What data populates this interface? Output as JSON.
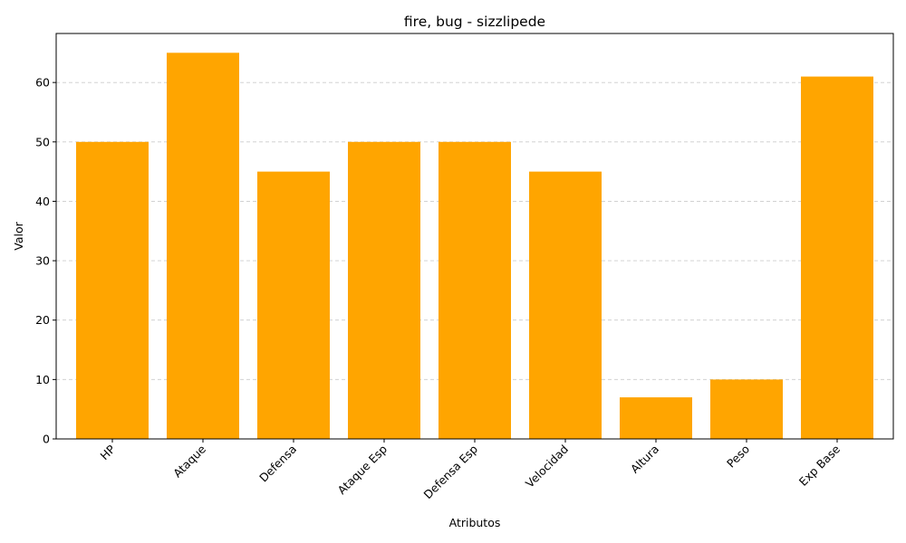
{
  "chart_data": {
    "type": "bar",
    "title": "fire, bug - sizzlipede",
    "xlabel": "Atributos",
    "ylabel": "Valor",
    "categories": [
      "HP",
      "Ataque",
      "Defensa",
      "Ataque Esp",
      "Defensa Esp",
      "Velocidad",
      "Altura",
      "Peso",
      "Exp Base"
    ],
    "values": [
      50,
      65,
      45,
      50,
      50,
      45,
      7,
      10,
      61
    ],
    "ylim": [
      0,
      68.25
    ],
    "yticks": [
      0,
      10,
      20,
      30,
      40,
      50,
      60
    ],
    "bar_color": "#ffa500",
    "grid": "y-dashed",
    "x_tick_rotation": 45
  }
}
